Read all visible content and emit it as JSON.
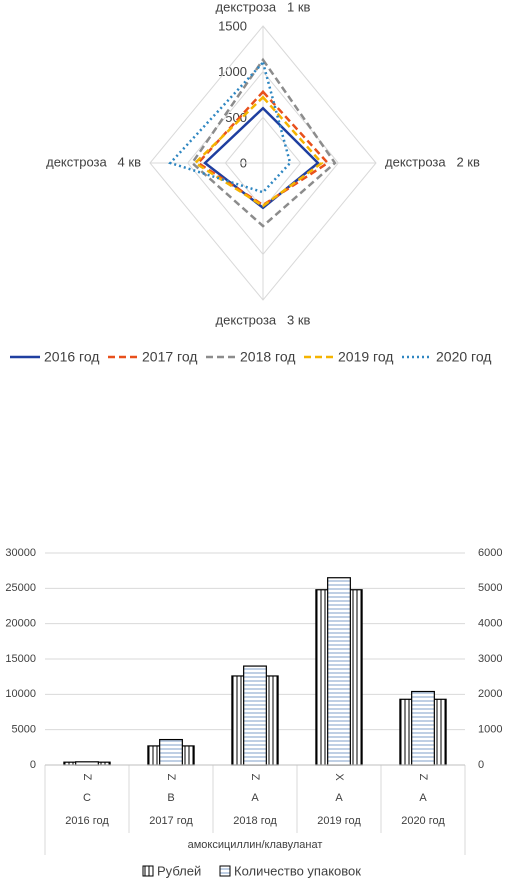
{
  "chart_data": [
    {
      "type": "radar",
      "categories": [
        "декстроза   1 кв",
        "декстроза   2 кв",
        "декстроза   3 кв",
        "декстроза   4 кв"
      ],
      "rlim": [
        0,
        1500
      ],
      "rticks": [
        0,
        500,
        1000,
        1500
      ],
      "legend": "bottom",
      "series": [
        {
          "name": "2016 год",
          "color": "#1f3fa0",
          "dash": "solid",
          "values": [
            600,
            730,
            490,
            770
          ]
        },
        {
          "name": "2017 год",
          "color": "#e8501c",
          "dash": "dashed",
          "values": [
            780,
            860,
            460,
            860
          ]
        },
        {
          "name": "2018 год",
          "color": "#8c8c8c",
          "dash": "dashed",
          "values": [
            1130,
            955,
            690,
            940
          ]
        },
        {
          "name": "2019 год",
          "color": "#f5b400",
          "dash": "dashed",
          "values": [
            720,
            780,
            470,
            900
          ]
        },
        {
          "name": "2020 год",
          "color": "#2e86c1",
          "dash": "dotted",
          "values": [
            1100,
            360,
            320,
            1230
          ]
        }
      ]
    },
    {
      "type": "bar",
      "group_label": "амоксициллин/клавуланат",
      "categories": [
        "2016 год",
        "2017 год",
        "2018 год",
        "2019 год",
        "2020 год"
      ],
      "codes_1": [
        "Z",
        "Z",
        "Z",
        "X",
        "Z"
      ],
      "codes_2": [
        "C",
        "B",
        "A",
        "A",
        "A"
      ],
      "ylim": [
        0,
        30000
      ],
      "yticks": [
        0,
        5000,
        10000,
        15000,
        20000,
        25000,
        30000
      ],
      "y2lim": [
        0,
        6000
      ],
      "y2ticks": [
        0,
        1000,
        2000,
        3000,
        4000,
        5000,
        6000
      ],
      "grid": true,
      "legend": "bottom",
      "series": [
        {
          "name": "Рублей",
          "pattern": "vertical",
          "values": [
            400,
            2700,
            12600,
            24800,
            9300
          ]
        },
        {
          "name": "Количество упаковок",
          "pattern": "horizontal",
          "axis": "y2",
          "values": [
            90,
            720,
            2800,
            5300,
            2080
          ]
        }
      ]
    }
  ]
}
